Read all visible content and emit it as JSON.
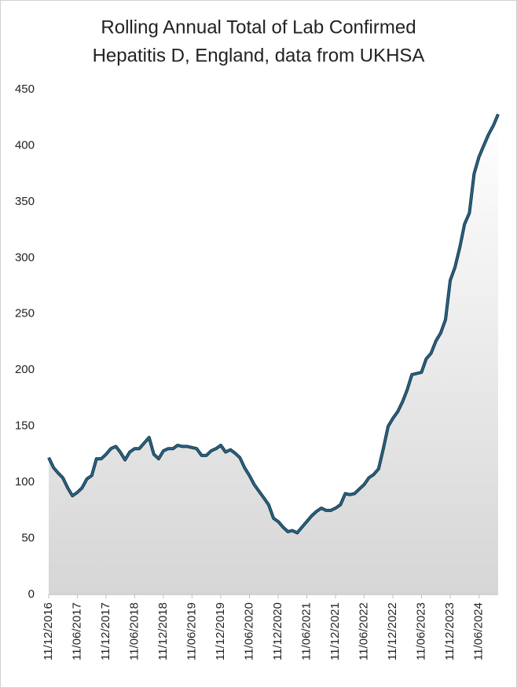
{
  "chart_data": {
    "type": "area-line",
    "title": [
      "Rolling Annual Total of Lab Confirmed",
      "Hepatitis D, England,  data from UKHSA"
    ],
    "color": "#2a6585",
    "x": [
      "11/12/2016",
      "11/01/2017",
      "11/02/2017",
      "11/03/2017",
      "11/04/2017",
      "11/05/2017",
      "11/06/2017",
      "11/07/2017",
      "11/08/2017",
      "11/09/2017",
      "11/10/2017",
      "11/11/2017",
      "11/12/2017",
      "11/01/2018",
      "11/02/2018",
      "11/03/2018",
      "11/04/2018",
      "11/05/2018",
      "11/06/2018",
      "11/07/2018",
      "11/08/2018",
      "11/09/2018",
      "11/10/2018",
      "11/11/2018",
      "11/12/2018",
      "11/01/2019",
      "11/02/2019",
      "11/03/2019",
      "11/04/2019",
      "11/05/2019",
      "11/06/2019",
      "11/07/2019",
      "11/08/2019",
      "11/09/2019",
      "11/10/2019",
      "11/11/2019",
      "11/12/2019",
      "11/01/2020",
      "11/02/2020",
      "11/03/2020",
      "11/04/2020",
      "11/05/2020",
      "11/06/2020",
      "11/07/2020",
      "11/08/2020",
      "11/09/2020",
      "11/10/2020",
      "11/11/2020",
      "11/12/2020",
      "11/01/2021",
      "11/02/2021",
      "11/03/2021",
      "11/04/2021",
      "11/05/2021",
      "11/06/2021",
      "11/07/2021",
      "11/08/2021",
      "11/09/2021",
      "11/10/2021",
      "11/11/2021",
      "11/12/2021",
      "11/01/2022",
      "11/02/2022",
      "11/03/2022",
      "11/04/2022",
      "11/05/2022",
      "11/06/2022",
      "11/07/2022",
      "11/08/2022",
      "11/09/2022",
      "11/10/2022",
      "11/11/2022",
      "11/12/2022",
      "11/01/2023",
      "11/02/2023",
      "11/03/2023",
      "11/04/2023",
      "11/05/2023",
      "11/06/2023",
      "11/07/2023",
      "11/08/2023",
      "11/09/2023",
      "11/10/2023",
      "11/11/2023",
      "11/12/2023",
      "11/01/2024",
      "11/02/2024",
      "11/03/2024",
      "11/04/2024",
      "11/05/2024",
      "11/06/2024",
      "11/07/2024",
      "11/08/2024",
      "11/09/2024",
      "11/10/2024"
    ],
    "values": [
      122,
      113,
      108,
      104,
      95,
      88,
      91,
      95,
      103,
      106,
      121,
      121,
      125,
      130,
      132,
      127,
      120,
      127,
      130,
      130,
      135,
      140,
      125,
      121,
      128,
      130,
      130,
      133,
      132,
      132,
      131,
      130,
      124,
      124,
      128,
      130,
      133,
      127,
      129,
      126,
      122,
      113,
      106,
      98,
      92,
      86,
      80,
      68,
      65,
      60,
      56,
      57,
      55,
      60,
      65,
      70,
      74,
      77,
      75,
      75,
      77,
      80,
      90,
      89,
      90,
      94,
      98,
      104,
      107,
      112,
      130,
      150,
      157,
      163,
      172,
      182,
      196,
      197,
      198,
      210,
      215,
      226,
      233,
      245,
      280,
      292,
      310,
      330,
      340,
      375,
      390,
      400,
      410,
      418,
      428
    ],
    "xlim": [
      "11/12/2016",
      "11/10/2024"
    ],
    "xticks": [
      "11/12/2016",
      "11/06/2017",
      "11/12/2017",
      "11/06/2018",
      "11/12/2018",
      "11/06/2019",
      "11/12/2019",
      "11/06/2020",
      "11/12/2020",
      "11/06/2021",
      "11/12/2021",
      "11/06/2022",
      "11/12/2022",
      "11/06/2023",
      "11/12/2023",
      "11/06/2024"
    ],
    "ylim": [
      0,
      450
    ],
    "yticks": [
      0,
      50,
      100,
      150,
      200,
      250,
      300,
      350,
      400,
      450
    ]
  }
}
